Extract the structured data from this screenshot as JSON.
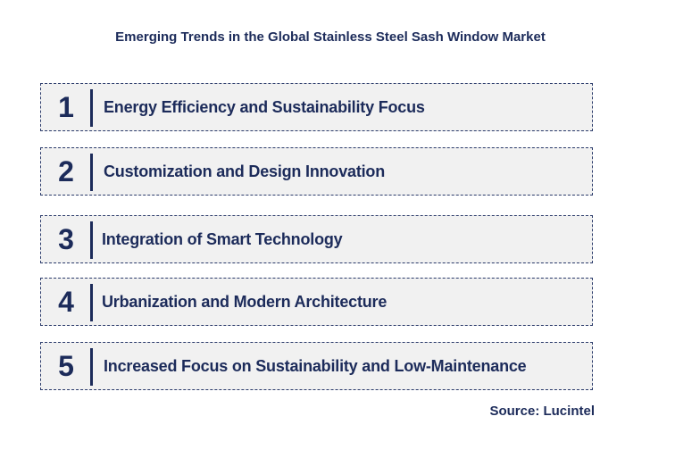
{
  "title": "Emerging Trends in the Global Stainless Steel Sash Window Market",
  "trends": [
    {
      "number": "1",
      "label": "Energy Efficiency and Sustainability Focus"
    },
    {
      "number": "2",
      "label": "Customization and Design Innovation"
    },
    {
      "number": "3",
      "label": "Integration of Smart Technology"
    },
    {
      "number": "4",
      "label": "Urbanization and Modern Architecture"
    },
    {
      "number": "5",
      "label": "Increased Focus on Sustainability and Low-Maintenance"
    }
  ],
  "source": "Source: Lucintel",
  "colors": {
    "text": "#1c2b5a",
    "box_background": "#f1f1f1",
    "border": "#2a3a6a"
  }
}
